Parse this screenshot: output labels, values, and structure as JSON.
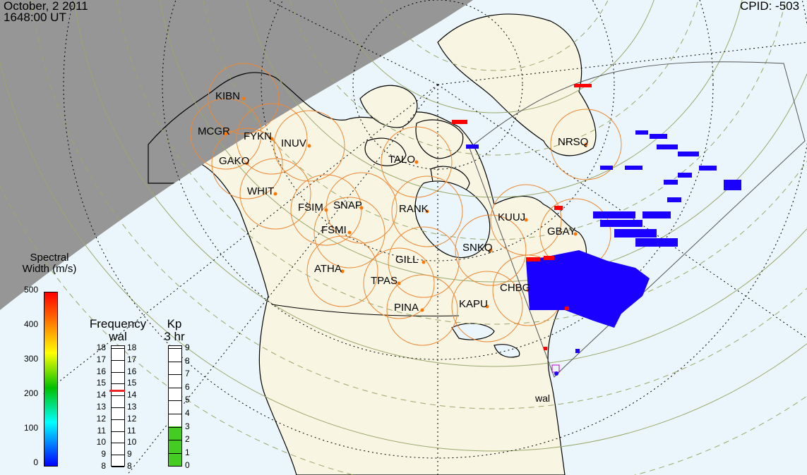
{
  "header": {
    "date": "October, 2 2011",
    "time": "1648:00 UT",
    "cpid": "CPID:  -503"
  },
  "stations": [
    {
      "code": "KIBN"
    },
    {
      "code": "MCGR"
    },
    {
      "code": "FYKN"
    },
    {
      "code": "INUV"
    },
    {
      "code": "GAKO"
    },
    {
      "code": "WHIT"
    },
    {
      "code": "FSIM"
    },
    {
      "code": "SNAP"
    },
    {
      "code": "FSMI"
    },
    {
      "code": "TALO"
    },
    {
      "code": "RANK"
    },
    {
      "code": "KUUJ"
    },
    {
      "code": "GBAY"
    },
    {
      "code": "SNKQ"
    },
    {
      "code": "GILL"
    },
    {
      "code": "ATHA"
    },
    {
      "code": "TPAS"
    },
    {
      "code": "CHBG"
    },
    {
      "code": "KAPU"
    },
    {
      "code": "PINA"
    },
    {
      "code": "NRSQ"
    }
  ],
  "radar_label": "wal",
  "spectral": {
    "title1": "Spectral",
    "title2": "Width (m/s)",
    "ticks": [
      "500",
      "400",
      "300",
      "200",
      "100",
      "0"
    ],
    "colors": [
      "#ff0000",
      "#ff8000",
      "#ffff00",
      "#00c000",
      "#00ffff",
      "#0000ff"
    ]
  },
  "frequency": {
    "title": "Frequency",
    "sub": "wal",
    "values": [
      "18",
      "17",
      "16",
      "15",
      "14",
      "13",
      "12",
      "11",
      "10",
      "9",
      "8"
    ],
    "current": 14.5
  },
  "kp": {
    "title": "Kp",
    "sub": "3 hr",
    "values": [
      "9",
      "8",
      "7",
      "6",
      "5",
      "4",
      "3",
      "2",
      "1",
      "0"
    ],
    "level": 3
  },
  "colors": {
    "land": "#f8f5e3",
    "ocean": "#eaf6fb",
    "night": "#969696",
    "fov": "#ee8833",
    "scatter": "#1a00ff"
  }
}
